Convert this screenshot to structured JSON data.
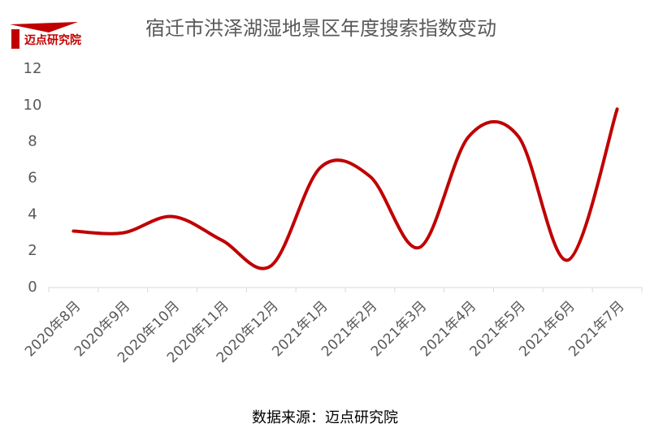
{
  "logo": "迈点研究院",
  "chart_data": {
    "type": "line",
    "title": "宿迁市洪泽湖湿地景区年度搜索指数变动",
    "categories": [
      "2020年8月",
      "2020年9月",
      "2020年10月",
      "2020年11月",
      "2020年12月",
      "2021年1月",
      "2021年2月",
      "2021年3月",
      "2021年4月",
      "2021年5月",
      "2021年6月",
      "2021年7月"
    ],
    "series": [
      {
        "name": "搜索指数",
        "color": "#c00000",
        "values": [
          3.1,
          3.0,
          3.9,
          2.6,
          1.2,
          6.6,
          6.1,
          2.2,
          8.3,
          8.3,
          1.5,
          9.8
        ]
      }
    ],
    "ylim": [
      0,
      12
    ],
    "yticks": [
      0,
      2,
      4,
      6,
      8,
      10,
      12
    ],
    "smooth": true,
    "source": "数据来源：迈点研究院"
  }
}
